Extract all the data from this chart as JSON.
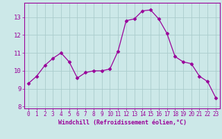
{
  "hours": [
    0,
    1,
    2,
    3,
    4,
    5,
    6,
    7,
    8,
    9,
    10,
    11,
    12,
    13,
    14,
    15,
    16,
    17,
    18,
    19,
    20,
    21,
    22,
    23
  ],
  "values": [
    9.3,
    9.7,
    10.3,
    10.7,
    11.0,
    10.5,
    9.6,
    9.9,
    10.0,
    10.0,
    10.1,
    11.1,
    12.8,
    12.9,
    13.35,
    13.4,
    12.9,
    12.1,
    10.8,
    10.5,
    10.4,
    9.7,
    9.4,
    8.5
  ],
  "line_color": "#990099",
  "marker": "D",
  "marker_size": 2.5,
  "bg_color": "#cce8e8",
  "grid_color": "#aacccc",
  "xlabel": "Windchill (Refroidissement éolien,°C)",
  "xlim": [
    -0.5,
    23.5
  ],
  "ylim": [
    7.9,
    13.8
  ],
  "yticks": [
    8,
    9,
    10,
    11,
    12,
    13
  ],
  "xticks": [
    0,
    1,
    2,
    3,
    4,
    5,
    6,
    7,
    8,
    9,
    10,
    11,
    12,
    13,
    14,
    15,
    16,
    17,
    18,
    19,
    20,
    21,
    22,
    23
  ],
  "tick_color": "#990099",
  "axis_color": "#990099",
  "xlabel_fontsize": 6.0,
  "xtick_fontsize": 5.5,
  "ytick_fontsize": 6.5
}
